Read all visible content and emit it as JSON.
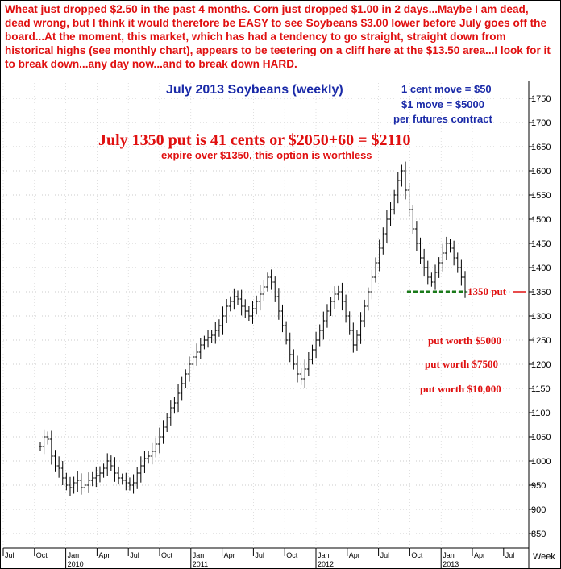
{
  "headline": "Wheat just dropped $2.50 in the past 4 months. Corn just dropped $1.00 in 2 days...Maybe I am dead, dead wrong, but I think it would therefore be EASY to see Soybeans $3.00 lower before July goes off the board...At the moment, this market, which has had a tendency to go straight, straight down from historical highs (see monthly chart), appears to be teetering on a cliff here at the $13.50 area...I look for it to break down...any day now...and to break down HARD.",
  "notes": {
    "cent_move": "1 cent move = $50",
    "dollar_move": "$1 move = $5000",
    "per_contract": "per futures contract",
    "put_price": "July 1350 put is 41 cents or $2050+60 = $2110",
    "expire": "expire over $1350, this option is worthless",
    "put_level": "1350 put",
    "worth_5000": "put worth $5000",
    "worth_7500": "put worth $7500",
    "worth_10000": "put worth $10,000"
  },
  "colors": {
    "annotation": "#e01010",
    "title": "#1a2aa8",
    "support": "#1a7a1a",
    "bars": "#000000"
  },
  "chart_data": {
    "type": "ohlc",
    "title": "July 2013 Soybeans (weekly)",
    "ylim": [
      800,
      1790
    ],
    "yticks": [
      850,
      900,
      950,
      1000,
      1050,
      1100,
      1150,
      1200,
      1250,
      1300,
      1350,
      1400,
      1450,
      1500,
      1550,
      1600,
      1650,
      1700,
      1750
    ],
    "x_unit_label": "Week",
    "month_ticks": [
      "Jul",
      "Oct",
      "Jan",
      "Apr",
      "Jul",
      "Oct",
      "Jan",
      "Apr",
      "Jul",
      "Oct",
      "Jan",
      "Apr",
      "Jul",
      "Oct",
      "Jan",
      "Apr",
      "Jul"
    ],
    "year_ticks": [
      "2010",
      "2011",
      "2012",
      "2013"
    ],
    "support_level": 1350,
    "weekly_closes": [
      1030,
      1050,
      1045,
      1010,
      990,
      985,
      965,
      950,
      945,
      955,
      960,
      945,
      950,
      960,
      965,
      970,
      975,
      985,
      1000,
      990,
      975,
      965,
      960,
      955,
      950,
      955,
      975,
      990,
      1005,
      1010,
      1020,
      1035,
      1050,
      1070,
      1090,
      1110,
      1120,
      1140,
      1160,
      1180,
      1200,
      1215,
      1225,
      1240,
      1250,
      1255,
      1260,
      1270,
      1280,
      1300,
      1320,
      1330,
      1340,
      1335,
      1320,
      1310,
      1300,
      1315,
      1330,
      1345,
      1360,
      1380,
      1370,
      1340,
      1310,
      1280,
      1250,
      1220,
      1200,
      1180,
      1170,
      1190,
      1210,
      1230,
      1250,
      1270,
      1290,
      1310,
      1330,
      1345,
      1350,
      1330,
      1300,
      1270,
      1240,
      1260,
      1290,
      1320,
      1350,
      1380,
      1410,
      1440,
      1470,
      1500,
      1520,
      1550,
      1580,
      1600,
      1560,
      1520,
      1480,
      1450,
      1420,
      1400,
      1380,
      1370,
      1390,
      1410,
      1430,
      1450,
      1440,
      1420,
      1400,
      1380,
      1350
    ]
  }
}
